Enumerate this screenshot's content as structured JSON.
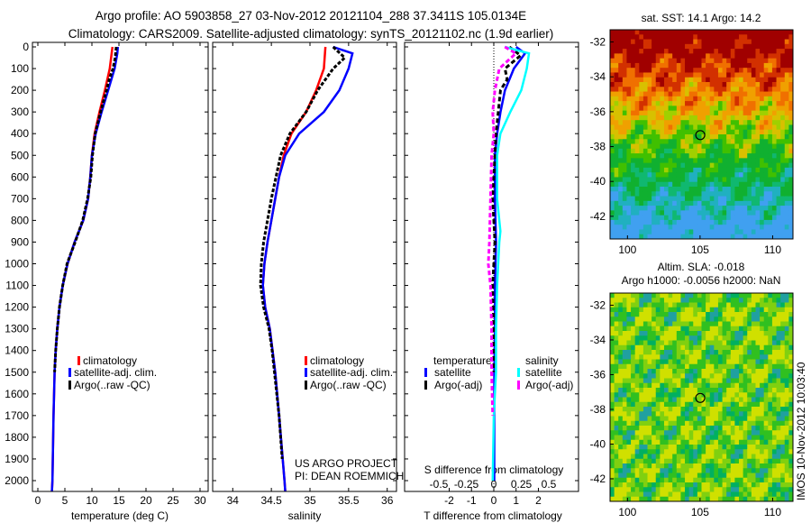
{
  "title_line1": "Argo profile: AO 5903858_27 03-Nov-2012 20121104_288 37.3411S 105.0134E",
  "title_line2": "Climatology: CARS2009. Satellite-adjusted climatology: synTS_20121102.nc (1.9d earlier)",
  "stamp": "IMOS 10-Nov-2012 10:03:40",
  "colors": {
    "climatology": "#ff0000",
    "satellite": "#0000ff",
    "argo": "#000000",
    "sal_satellite": "#00ffff",
    "sal_argo": "#ff00ff"
  },
  "chart_data": [
    {
      "type": "line",
      "id": "temp",
      "xlabel": "temperature (deg C)",
      "ylabel": "",
      "xlim": [
        -1,
        31.5
      ],
      "ylim": [
        2070,
        0
      ],
      "xticks": [
        0,
        5,
        10,
        15,
        20,
        25,
        30
      ],
      "yticks": [
        0,
        100,
        200,
        300,
        400,
        500,
        600,
        700,
        800,
        900,
        1000,
        1100,
        1200,
        1300,
        1400,
        1500,
        1600,
        1700,
        1800,
        1900,
        2000
      ],
      "legend": [
        "climatology",
        "satellite-adj. clim.",
        "Argo(..raw -QC)"
      ],
      "series": [
        {
          "name": "climatology",
          "depth": [
            0,
            100,
            200,
            300,
            400,
            500,
            600,
            700,
            800,
            900,
            1000,
            1100,
            1200,
            1300,
            1400,
            1500,
            1700,
            2000,
            2050
          ],
          "values": [
            13.8,
            13.3,
            12.4,
            11.4,
            10.5,
            10.0,
            9.7,
            9.3,
            8.4,
            6.8,
            5.5,
            4.6,
            4.0,
            3.6,
            3.3,
            3.1,
            2.9,
            2.7,
            2.6
          ]
        },
        {
          "name": "satellite-adj. clim.",
          "depth": [
            0,
            30,
            100,
            200,
            300,
            400,
            500,
            600,
            700,
            800,
            900,
            1000,
            1100,
            1200,
            1300,
            1400,
            1500,
            1700,
            2000,
            2050
          ],
          "values": [
            14.8,
            14.7,
            14.2,
            13.0,
            11.8,
            10.7,
            10.0,
            9.7,
            9.3,
            8.4,
            6.8,
            5.5,
            4.6,
            4.0,
            3.6,
            3.3,
            3.1,
            2.9,
            2.7,
            2.6
          ]
        },
        {
          "name": "Argo(..raw -QC)",
          "depth": [
            0,
            50,
            100,
            150,
            200,
            300,
            400,
            500,
            600,
            700,
            800,
            900,
            1000,
            1100,
            1200,
            1300,
            1400,
            1500
          ],
          "values": [
            14.5,
            14.3,
            13.9,
            13.2,
            12.7,
            11.6,
            10.6,
            10.1,
            9.8,
            9.2,
            8.3,
            6.9,
            5.4,
            4.6,
            4.0,
            3.6,
            3.3,
            3.1
          ]
        }
      ]
    },
    {
      "type": "line",
      "id": "sal",
      "xlabel": "salinity",
      "ylabel": "",
      "xlim": [
        33.74,
        36.12
      ],
      "ylim": [
        2070,
        0
      ],
      "xticks": [
        34,
        34.5,
        35,
        35.5,
        36
      ],
      "legend": [
        "climatology",
        "satellite-adj. clim.",
        "Argo(..raw -QC)"
      ],
      "annotation": [
        "US ARGO PROJECT",
        "PI: DEAN ROEMMICH"
      ],
      "series": [
        {
          "name": "climatology",
          "depth": [
            0,
            100,
            200,
            300,
            400,
            500,
            600,
            700,
            800,
            900,
            1000,
            1100,
            1200,
            1300,
            1500,
            1700,
            2000,
            2050
          ],
          "values": [
            35.2,
            35.18,
            35.08,
            34.95,
            34.76,
            34.66,
            34.6,
            34.55,
            34.5,
            34.45,
            34.41,
            34.39,
            34.42,
            34.48,
            34.55,
            34.6,
            34.67,
            34.68
          ]
        },
        {
          "name": "satellite-adj. clim.",
          "depth": [
            0,
            30,
            100,
            200,
            300,
            400,
            500,
            600,
            700,
            800,
            900,
            1000,
            1100,
            1200,
            1300,
            1500,
            1700,
            2000,
            2050
          ],
          "values": [
            35.3,
            35.55,
            35.5,
            35.38,
            35.18,
            34.86,
            34.68,
            34.6,
            34.55,
            34.5,
            34.45,
            34.41,
            34.39,
            34.42,
            34.48,
            34.55,
            34.6,
            34.67,
            34.68
          ]
        },
        {
          "name": "Argo(..raw -QC)",
          "depth": [
            0,
            50,
            100,
            150,
            200,
            300,
            400,
            500,
            600,
            700,
            800,
            900,
            1000,
            1100,
            1200,
            1300,
            1400,
            1500,
            1700,
            1900
          ],
          "values": [
            35.3,
            35.45,
            35.3,
            35.2,
            35.1,
            34.95,
            34.74,
            34.62,
            34.56,
            34.5,
            34.45,
            34.4,
            34.37,
            34.36,
            34.4,
            34.47,
            34.51,
            34.54,
            34.6,
            34.64
          ]
        }
      ]
    },
    {
      "type": "line",
      "id": "diff",
      "xlabel": "T difference from climatology",
      "x2label": "S difference from climatology",
      "xlim": [
        -4.0,
        3.8
      ],
      "x2lim": [
        -0.5,
        0.5
      ],
      "xticks": [
        -2,
        -1,
        0,
        1,
        2
      ],
      "x2ticks": [
        -0.5,
        -0.25,
        0,
        0.25,
        0.5
      ],
      "legend_groups": [
        "temperature",
        "salinity"
      ],
      "legend": [
        "satellite",
        "Argo(-adj)",
        "satellite",
        "Argo(-adj)"
      ],
      "series": [
        {
          "name": "T satellite",
          "axis": "T",
          "depth": [
            0,
            30,
            100,
            200,
            300,
            400,
            500,
            700,
            900,
            1100,
            1300,
            1500,
            1700,
            2000
          ],
          "values": [
            1.0,
            1.4,
            0.9,
            0.5,
            0.3,
            0.15,
            0.05,
            0.05,
            0.1,
            0.05,
            0.05,
            0.02,
            0.02,
            0.02
          ]
        },
        {
          "name": "T Argo(-adj)",
          "axis": "T",
          "depth": [
            0,
            40,
            100,
            150,
            200,
            300,
            400,
            500,
            700,
            900,
            1100,
            1300,
            1500
          ],
          "values": [
            0.7,
            1.2,
            0.5,
            0.6,
            0.3,
            0.2,
            0.1,
            0.05,
            -0.05,
            0.05,
            -0.05,
            0.0,
            0.0
          ]
        },
        {
          "name": "S satellite",
          "axis": "S",
          "depth": [
            0,
            30,
            100,
            200,
            300,
            400,
            500,
            700,
            850,
            900,
            1100,
            1300,
            1500,
            1700,
            2000
          ],
          "values": [
            0.1,
            0.32,
            0.3,
            0.25,
            0.15,
            0.06,
            0.03,
            0.03,
            0.06,
            0.05,
            0.03,
            0.02,
            0.02,
            0.0,
            -0.01
          ]
        },
        {
          "name": "S Argo(-adj)",
          "axis": "S",
          "depth": [
            0,
            30,
            100,
            200,
            300,
            400,
            500,
            700,
            900,
            1000,
            1100,
            1300,
            1500,
            1700
          ],
          "values": [
            0.1,
            0.2,
            0.05,
            0.01,
            -0.01,
            0.0,
            -0.02,
            -0.03,
            -0.04,
            -0.05,
            -0.03,
            -0.02,
            -0.02,
            -0.01
          ]
        }
      ]
    }
  ],
  "maps": [
    {
      "title": "sat. SST: 14.1 Argo: 14.2",
      "xticks": [
        100,
        105,
        110
      ],
      "yticks": [
        -32,
        -34,
        -36,
        -38,
        -40,
        -42
      ],
      "xlim": [
        98.8,
        111.4
      ],
      "ylim": [
        -43.3,
        -31.3
      ],
      "argo_lon": 105.0134,
      "argo_lat": -37.3411
    },
    {
      "title1": "Altim. SLA: -0.018",
      "title2": "Argo h1000: -0.0056 h2000: NaN",
      "xticks": [
        100,
        105,
        110
      ],
      "yticks": [
        -32,
        -34,
        -36,
        -38,
        -40,
        -42
      ],
      "xlim": [
        98.8,
        111.4
      ],
      "ylim": [
        -43.3,
        -31.3
      ],
      "argo_lon": 105.0134,
      "argo_lat": -37.3411
    }
  ]
}
